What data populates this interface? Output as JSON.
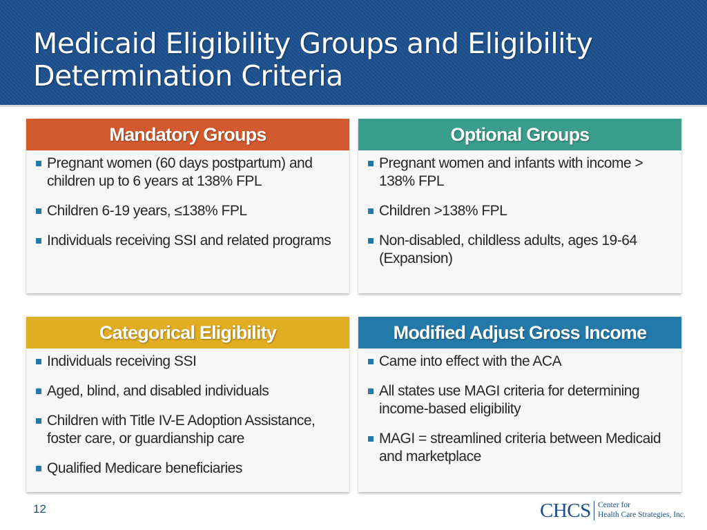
{
  "slide": {
    "title": "Medicaid Eligibility Groups and Eligibility Determination Criteria",
    "page_number": "12"
  },
  "colors": {
    "header_background": "#1c4f8c",
    "mandatory": "#d35a2e",
    "optional": "#3b9e8c",
    "categorical": "#e1ad22",
    "magi": "#237aaa"
  },
  "boxes": {
    "mandatory": {
      "heading": "Mandatory Groups",
      "items": [
        "Pregnant women (60 days postpartum) and children up to 6 years at 138% FPL",
        "Children 6-19 years, ≤138% FPL",
        "Individuals receiving SSI and related programs"
      ]
    },
    "optional": {
      "heading": "Optional Groups",
      "items": [
        "Pregnant women and infants with income > 138% FPL",
        "Children >138% FPL",
        "Non-disabled, childless adults, ages 19-64 (Expansion)"
      ]
    },
    "categorical": {
      "heading": "Categorical Eligibility",
      "items": [
        "Individuals receiving SSI",
        "Aged, blind, and disabled individuals",
        "Children with Title IV-E Adoption Assistance, foster care, or guardianship care",
        "Qualified Medicare beneficiaries"
      ]
    },
    "magi": {
      "heading": "Modified Adjust Gross Income",
      "items": [
        "Came into effect with the ACA",
        "All states use MAGI criteria for determining income-based eligibility",
        "MAGI = streamlined criteria between Medicaid and marketplace"
      ]
    }
  },
  "logo": {
    "mark": "CHCS",
    "line1": "Center for",
    "line2": "Health Care Strategies, Inc."
  }
}
